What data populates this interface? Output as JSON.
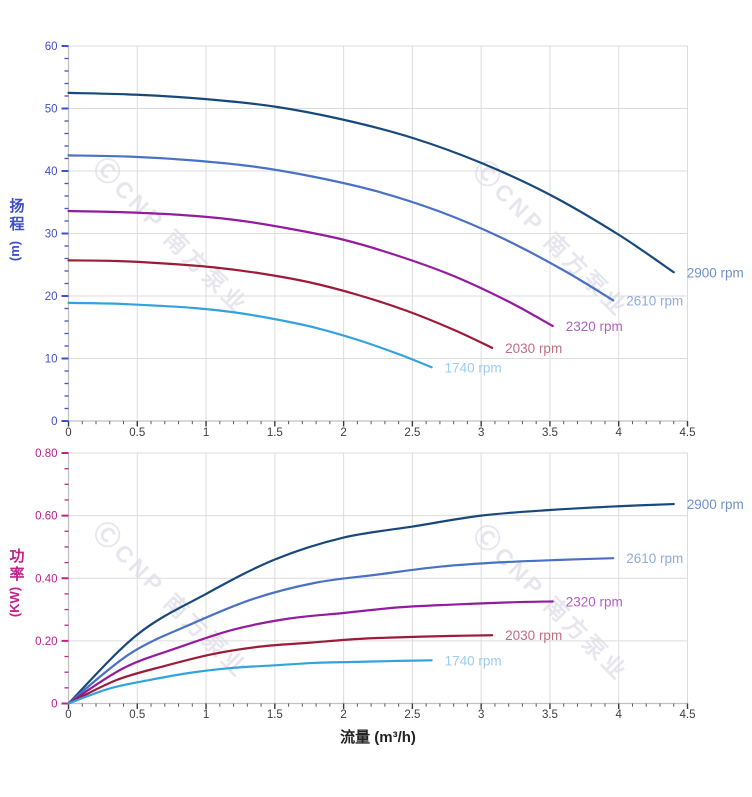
{
  "watermark": {
    "logo": "Ⓒ",
    "text": "CNP 南方泵业"
  },
  "axis_titles": {
    "head_title": "扬程",
    "head_unit": "(m)",
    "power_title": "功率",
    "power_unit": "(KW)",
    "flow_title": "流量 (m³/h)"
  },
  "chart_data": [
    {
      "type": "line",
      "name": "head-curves",
      "xlabel": "流量 (m³/h)",
      "ylabel": "扬程 (m)",
      "xlim": [
        0,
        4.5
      ],
      "ylim": [
        0,
        60
      ],
      "grid": true,
      "legend_position": "right-of-curve-ends",
      "x_tick_values": [
        0,
        0.5,
        1,
        1.5,
        2,
        2.5,
        3,
        3.5,
        4,
        4.5
      ],
      "x_tick_labels": [
        "0",
        "0.5",
        "1",
        "1.5",
        "2",
        "2.5",
        "3",
        "3.5",
        "4",
        "4.5"
      ],
      "x_minor_step": 0.1,
      "y_tick_values": [
        0,
        10,
        20,
        30,
        40,
        50,
        60
      ],
      "y_tick_labels": [
        "0",
        "10",
        "20",
        "30",
        "40",
        "50",
        "60"
      ],
      "y_minor_step": 2,
      "axis_color": "#4151cc",
      "x_text_color": "#3d3d3d",
      "series": [
        {
          "name": "2900 rpm",
          "color": "#17497c",
          "label_color": "#7091c6",
          "points": [
            [
              0,
              52.5
            ],
            [
              0.5,
              52.2
            ],
            [
              1,
              51.5
            ],
            [
              1.5,
              50.3
            ],
            [
              2,
              48.2
            ],
            [
              2.5,
              45.3
            ],
            [
              3,
              41.3
            ],
            [
              3.5,
              36.2
            ],
            [
              4,
              29.8
            ],
            [
              4.4,
              23.8
            ]
          ]
        },
        {
          "name": "2610 rpm",
          "color": "#4a72c4",
          "label_color": "#90abdb",
          "points": [
            [
              0,
              42.5
            ],
            [
              0.45,
              42.3
            ],
            [
              0.9,
              41.7
            ],
            [
              1.35,
              40.7
            ],
            [
              1.8,
              39.0
            ],
            [
              2.25,
              36.7
            ],
            [
              2.7,
              33.5
            ],
            [
              3.15,
              29.3
            ],
            [
              3.6,
              24.1
            ],
            [
              3.96,
              19.3
            ]
          ]
        },
        {
          "name": "2320 rpm",
          "color": "#951b9e",
          "label_color": "#b55fc2",
          "points": [
            [
              0,
              33.6
            ],
            [
              0.4,
              33.4
            ],
            [
              0.8,
              33.0
            ],
            [
              1.2,
              32.2
            ],
            [
              1.6,
              30.8
            ],
            [
              2,
              29.0
            ],
            [
              2.4,
              26.4
            ],
            [
              2.8,
              23.2
            ],
            [
              3.2,
              19.1
            ],
            [
              3.52,
              15.2
            ]
          ]
        },
        {
          "name": "2030 rpm",
          "color": "#9d1b38",
          "label_color": "#c06e82",
          "points": [
            [
              0,
              25.7
            ],
            [
              0.35,
              25.6
            ],
            [
              0.7,
              25.2
            ],
            [
              1.05,
              24.6
            ],
            [
              1.4,
              23.6
            ],
            [
              1.75,
              22.2
            ],
            [
              2.1,
              20.2
            ],
            [
              2.45,
              17.7
            ],
            [
              2.8,
              14.6
            ],
            [
              3.08,
              11.7
            ]
          ]
        },
        {
          "name": "1740 rpm",
          "color": "#33a3dd",
          "label_color": "#9ccdf0",
          "points": [
            [
              0,
              18.9
            ],
            [
              0.3,
              18.8
            ],
            [
              0.6,
              18.5
            ],
            [
              0.9,
              18.1
            ],
            [
              1.2,
              17.4
            ],
            [
              1.5,
              16.3
            ],
            [
              1.8,
              14.9
            ],
            [
              2.1,
              13.0
            ],
            [
              2.4,
              10.7
            ],
            [
              2.64,
              8.6
            ]
          ]
        }
      ]
    },
    {
      "type": "line",
      "name": "power-curves",
      "xlabel": "流量 (m³/h)",
      "ylabel": "功率 (KW)",
      "xlim": [
        0,
        4.5
      ],
      "ylim": [
        0,
        0.8
      ],
      "grid": true,
      "legend_position": "right-of-curve-ends",
      "x_tick_values": [
        0,
        0.5,
        1,
        1.5,
        2,
        2.5,
        3,
        3.5,
        4,
        4.5
      ],
      "x_tick_labels": [
        "0",
        "0.5",
        "1",
        "1.5",
        "2",
        "2.5",
        "3",
        "3.5",
        "4",
        "4.5"
      ],
      "x_minor_step": 0.1,
      "y_tick_values": [
        0,
        0.2,
        0.4,
        0.6,
        0.8
      ],
      "y_tick_labels": [
        "0",
        "0.20",
        "0.40",
        "0.60",
        "0.80"
      ],
      "y_minor_step": 0.05,
      "axis_color": "#c0218c",
      "x_text_color": "#3d3d3d",
      "series": [
        {
          "name": "2900 rpm",
          "color": "#17497c",
          "label_color": "#7091c6",
          "points": [
            [
              0,
              0
            ],
            [
              0.5,
              0.22
            ],
            [
              1,
              0.35
            ],
            [
              1.5,
              0.46
            ],
            [
              2,
              0.53
            ],
            [
              2.5,
              0.565
            ],
            [
              3,
              0.6
            ],
            [
              3.5,
              0.618
            ],
            [
              4,
              0.63
            ],
            [
              4.4,
              0.637
            ]
          ]
        },
        {
          "name": "2610 rpm",
          "color": "#4a72c4",
          "label_color": "#90abdb",
          "points": [
            [
              0,
              0
            ],
            [
              0.45,
              0.16
            ],
            [
              0.9,
              0.255
            ],
            [
              1.35,
              0.335
            ],
            [
              1.8,
              0.386
            ],
            [
              2.25,
              0.412
            ],
            [
              2.7,
              0.437
            ],
            [
              3.15,
              0.451
            ],
            [
              3.6,
              0.459
            ],
            [
              3.96,
              0.464
            ]
          ]
        },
        {
          "name": "2320 rpm",
          "color": "#951b9e",
          "label_color": "#b55fc2",
          "points": [
            [
              0,
              0
            ],
            [
              0.4,
              0.113
            ],
            [
              0.8,
              0.179
            ],
            [
              1.2,
              0.236
            ],
            [
              1.6,
              0.271
            ],
            [
              2,
              0.289
            ],
            [
              2.4,
              0.307
            ],
            [
              2.8,
              0.316
            ],
            [
              3.2,
              0.323
            ],
            [
              3.52,
              0.326
            ]
          ]
        },
        {
          "name": "2030 rpm",
          "color": "#9d1b38",
          "label_color": "#c06e82",
          "points": [
            [
              0,
              0
            ],
            [
              0.35,
              0.075
            ],
            [
              0.7,
              0.12
            ],
            [
              1.05,
              0.158
            ],
            [
              1.4,
              0.182
            ],
            [
              1.75,
              0.194
            ],
            [
              2.1,
              0.206
            ],
            [
              2.45,
              0.212
            ],
            [
              2.8,
              0.216
            ],
            [
              3.08,
              0.218
            ]
          ]
        },
        {
          "name": "1740 rpm",
          "color": "#33a3dd",
          "label_color": "#9ccdf0",
          "points": [
            [
              0,
              0
            ],
            [
              0.3,
              0.048
            ],
            [
              0.6,
              0.076
            ],
            [
              0.9,
              0.099
            ],
            [
              1.2,
              0.114
            ],
            [
              1.5,
              0.122
            ],
            [
              1.8,
              0.13
            ],
            [
              2.1,
              0.133
            ],
            [
              2.4,
              0.136
            ],
            [
              2.64,
              0.138
            ]
          ]
        }
      ]
    }
  ]
}
